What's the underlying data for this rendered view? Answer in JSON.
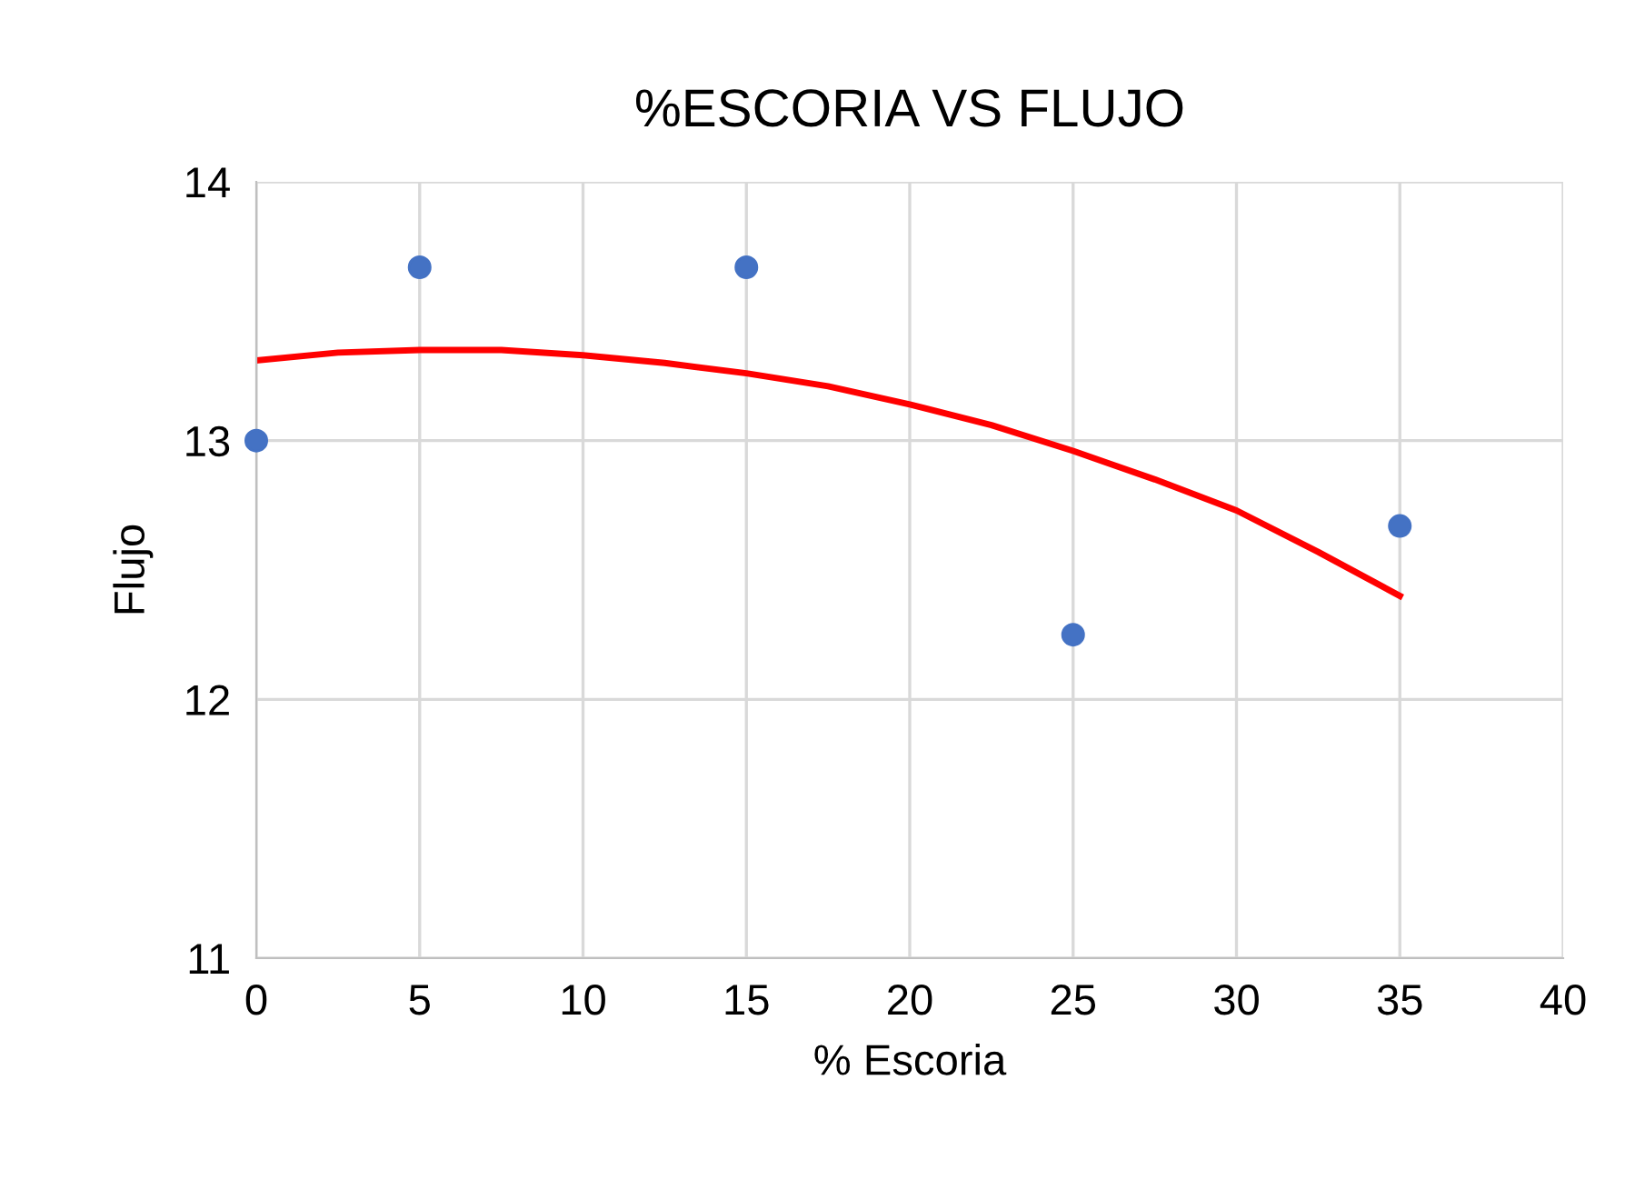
{
  "chart_data": {
    "type": "scatter",
    "title": "%ESCORIA VS FLUJO",
    "xlabel": "% Escoria",
    "ylabel": "Flujo",
    "series": [
      {
        "color": "#4472c4",
        "marker": "circle",
        "x": [
          0,
          5,
          15,
          25,
          35
        ],
        "values": [
          13.0,
          13.67,
          13.67,
          12.25,
          12.67
        ]
      },
      {
        "type": "line",
        "color": "#ff0000",
        "marker": "none",
        "line_style": "solid",
        "x": [
          0,
          2.5,
          5,
          7.5,
          10,
          12.5,
          15,
          17.5,
          20,
          22.5,
          25,
          27.5,
          30,
          32.5,
          35
        ],
        "values": [
          13.31,
          13.34,
          13.35,
          13.35,
          13.33,
          13.3,
          13.26,
          13.21,
          13.14,
          13.06,
          12.96,
          12.85,
          12.73,
          12.57,
          12.4
        ]
      }
    ],
    "xlim": [
      0,
      40
    ],
    "xticks": [
      0,
      5,
      10,
      15,
      20,
      25,
      30,
      35,
      40
    ],
    "ylim": [
      11,
      14
    ],
    "yticks": [
      11,
      12,
      13,
      14
    ],
    "grid": true,
    "legend": false
  }
}
